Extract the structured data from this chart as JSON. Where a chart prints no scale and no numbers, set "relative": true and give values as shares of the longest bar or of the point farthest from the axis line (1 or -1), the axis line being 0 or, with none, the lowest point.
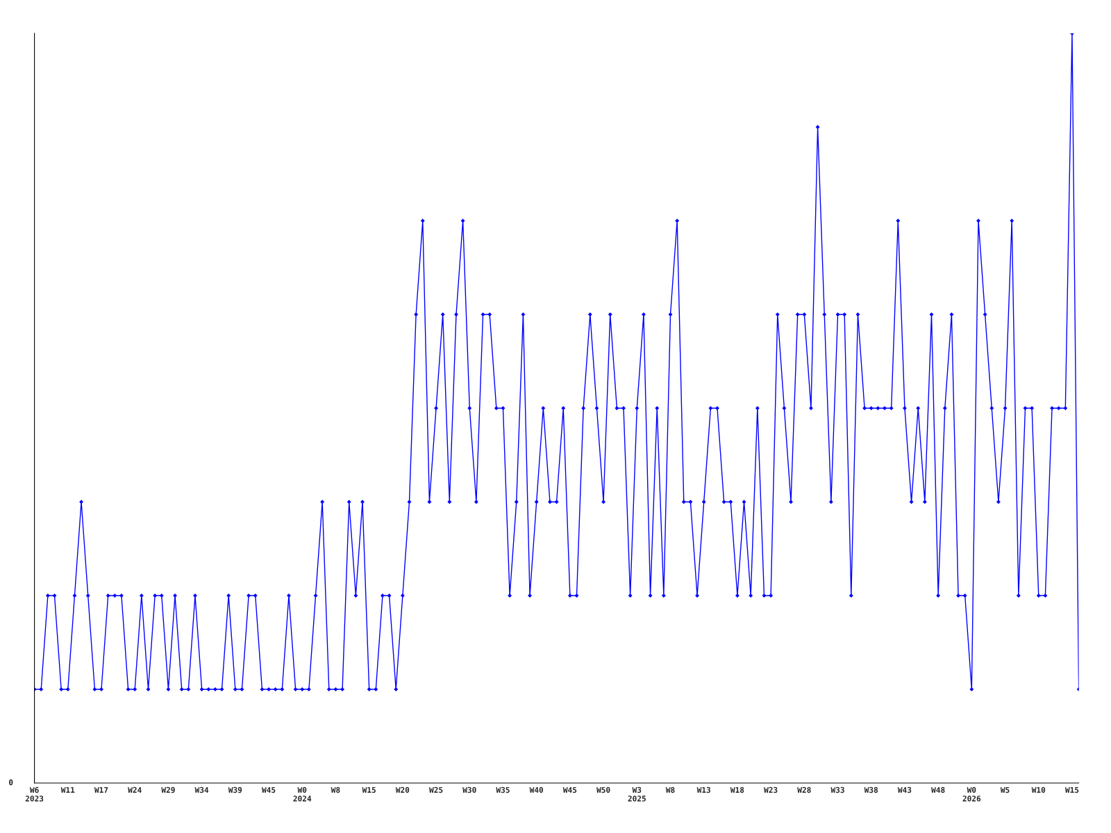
{
  "chart_data": {
    "type": "line",
    "relative": true,
    "marker": "diamond",
    "line_style": "solid",
    "grid": false,
    "annotations": [
      "0"
    ],
    "categories": [
      "W6\n2023",
      null,
      null,
      null,
      null,
      "W11",
      null,
      null,
      null,
      null,
      "W17",
      null,
      null,
      null,
      null,
      "W24",
      null,
      null,
      null,
      null,
      "W29",
      null,
      null,
      null,
      null,
      "W34",
      null,
      null,
      null,
      null,
      "W39",
      null,
      null,
      null,
      null,
      "W45",
      null,
      null,
      null,
      null,
      "W0\n2024",
      null,
      null,
      null,
      null,
      "W8",
      null,
      null,
      null,
      null,
      "W15",
      null,
      null,
      null,
      null,
      "W20",
      null,
      null,
      null,
      null,
      "W25",
      null,
      null,
      null,
      null,
      "W30",
      null,
      null,
      null,
      null,
      "W35",
      null,
      null,
      null,
      null,
      "W40",
      null,
      null,
      null,
      null,
      "W45",
      null,
      null,
      null,
      null,
      "W50",
      null,
      null,
      null,
      null,
      "W3\n2025",
      null,
      null,
      null,
      null,
      "W8",
      null,
      null,
      null,
      null,
      "W13",
      null,
      null,
      null,
      null,
      "W18",
      null,
      null,
      null,
      null,
      "W23",
      null,
      null,
      null,
      null,
      "W28",
      null,
      null,
      null,
      null,
      "W33",
      null,
      null,
      null,
      null,
      "W38",
      null,
      null,
      null,
      null,
      "W43",
      null,
      null,
      null,
      null,
      "W48",
      null,
      null,
      null,
      null,
      "W0\n2026",
      null,
      null,
      null,
      null,
      "W5",
      null,
      null,
      null,
      null,
      "W10",
      null,
      null,
      null,
      null,
      "W15",
      null
    ],
    "series": [
      {
        "color": "#0000ff",
        "values": [
          0.125,
          0.125,
          0.25,
          0.25,
          0.125,
          0.125,
          0.25,
          0.375,
          0.25,
          0.125,
          0.125,
          0.25,
          0.25,
          0.25,
          0.125,
          0.125,
          0.25,
          0.125,
          0.25,
          0.25,
          0.125,
          0.25,
          0.125,
          0.125,
          0.25,
          0.125,
          0.125,
          0.125,
          0.125,
          0.25,
          0.125,
          0.125,
          0.25,
          0.25,
          0.125,
          0.125,
          0.125,
          0.125,
          0.25,
          0.125,
          0.125,
          0.125,
          0.25,
          0.375,
          0.125,
          0.125,
          0.125,
          0.375,
          0.25,
          0.375,
          0.125,
          0.125,
          0.25,
          0.25,
          0.125,
          0.25,
          0.375,
          0.625,
          0.75,
          0.375,
          0.5,
          0.625,
          0.375,
          0.625,
          0.75,
          0.5,
          0.375,
          0.625,
          0.625,
          0.5,
          0.5,
          0.25,
          0.375,
          0.625,
          0.25,
          0.375,
          0.5,
          0.375,
          0.375,
          0.5,
          0.25,
          0.25,
          0.5,
          0.625,
          0.5,
          0.375,
          0.625,
          0.5,
          0.5,
          0.25,
          0.5,
          0.625,
          0.25,
          0.5,
          0.25,
          0.625,
          0.75,
          0.375,
          0.375,
          0.25,
          0.375,
          0.5,
          0.5,
          0.375,
          0.375,
          0.25,
          0.375,
          0.25,
          0.5,
          0.25,
          0.25,
          0.625,
          0.5,
          0.375,
          0.625,
          0.625,
          0.5,
          0.875,
          0.625,
          0.375,
          0.625,
          0.625,
          0.25,
          0.625,
          0.5,
          0.5,
          0.5,
          0.5,
          0.5,
          0.75,
          0.5,
          0.375,
          0.5,
          0.375,
          0.625,
          0.25,
          0.5,
          0.625,
          0.25,
          0.25,
          0.125,
          0.75,
          0.625,
          0.5,
          0.375,
          0.5,
          0.75,
          0.25,
          0.5,
          0.5,
          0.25,
          0.25,
          0.5,
          0.5,
          0.5,
          1,
          0.125
        ]
      }
    ]
  }
}
